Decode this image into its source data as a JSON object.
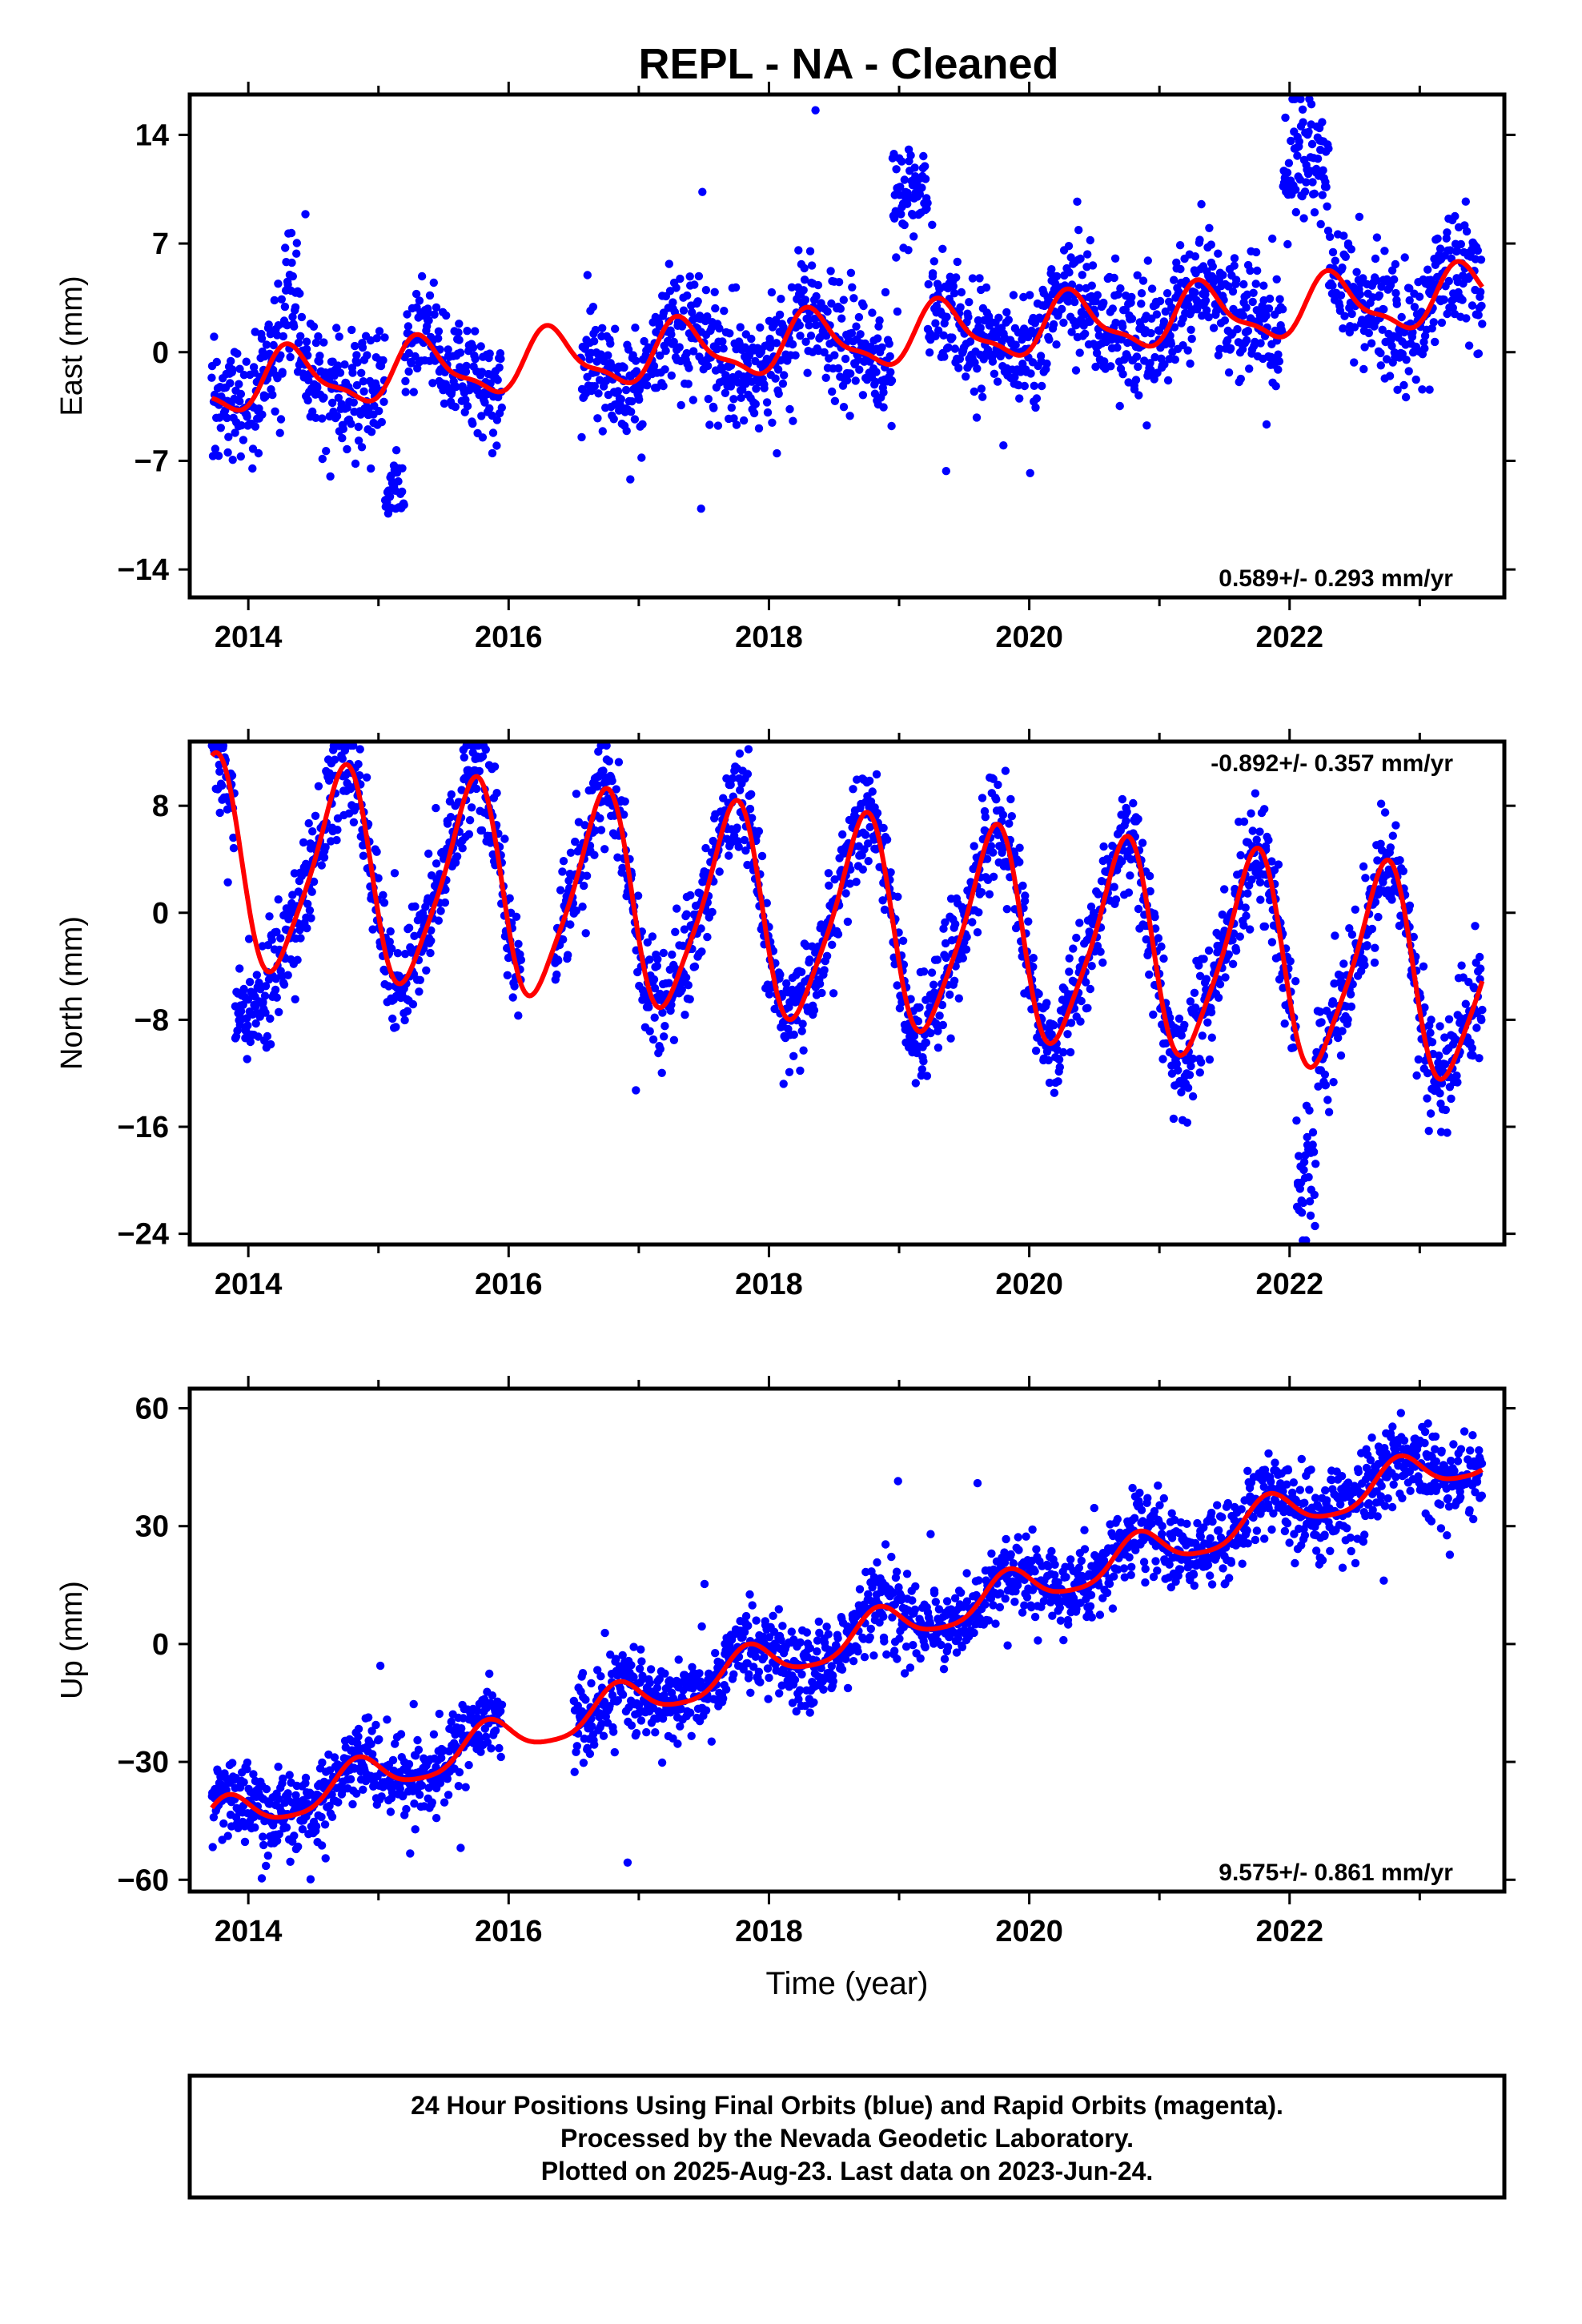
{
  "title": "REPL  - NA - Cleaned",
  "xlabel": "Time (year)",
  "footer": {
    "line1": "24 Hour Positions Using Final Orbits (blue) and Rapid Orbits (magenta).",
    "line2": "Processed by the Nevada Geodetic Laboratory.",
    "line3": "Plotted on 2025-Aug-23. Last data on 2023-Jun-24."
  },
  "colors": {
    "points": "#0000ff",
    "model": "#ff0000",
    "frame": "#000000"
  },
  "chart_data": [
    {
      "type": "scatter",
      "ylabel": "East (mm)",
      "rate_label": "0.589+/- 0.293 mm/yr",
      "rate_position": "bottom-right",
      "xlim": [
        2013.55,
        2023.65
      ],
      "ylim": [
        -15.8,
        16.6
      ],
      "yticks": [
        14,
        7,
        0,
        -7,
        -14
      ],
      "ytick_labels": [
        "14",
        "7",
        "0",
        "−7",
        "−14"
      ],
      "xticks": [
        2014,
        2016,
        2018,
        2020,
        2022
      ],
      "xtick_labels": [
        "2014",
        "2016",
        "2018",
        "2020",
        "2022"
      ],
      "model": {
        "start": 2013.72,
        "end": 2023.48,
        "offset": -2.1,
        "rate": 0.589,
        "annual_amp": 1.8,
        "annual_phase": 4.0,
        "semiannual_amp": 0.6,
        "semiannual_phase": 1.0
      },
      "scatter": {
        "start": 2013.72,
        "end": 2023.48,
        "n": 2300,
        "noise": 1.9,
        "gaps": [
          [
            2015.95,
            2016.55
          ]
        ],
        "clusters": [
          [
            2018.95,
            2019.22,
            10.0,
            1.8
          ],
          [
            2014.28,
            2014.38,
            4.0,
            2.0
          ],
          [
            2021.95,
            2022.3,
            12.0,
            2.0
          ],
          [
            2015.05,
            2015.2,
            -9.0,
            1.0
          ]
        ]
      }
    },
    {
      "type": "scatter",
      "ylabel": "North (mm)",
      "rate_label": "-0.892+/- 0.357 mm/yr",
      "rate_position": "top-right",
      "xlim": [
        2013.55,
        2023.65
      ],
      "ylim": [
        -24.8,
        12.8
      ],
      "yticks": [
        8,
        0,
        -8,
        -16,
        -24
      ],
      "ytick_labels": [
        "8",
        "0",
        "−8",
        "−16",
        "−24"
      ],
      "xticks": [
        2014,
        2016,
        2018,
        2020,
        2022
      ],
      "xtick_labels": [
        "2014",
        "2016",
        "2018",
        "2020",
        "2022"
      ],
      "model": {
        "start": 2013.72,
        "end": 2023.48,
        "offset": 3.6,
        "rate": -0.892,
        "annual_amp": 7.6,
        "annual_phase": 1.6,
        "semiannual_amp": 1.4,
        "semiannual_phase": 0.4
      },
      "scatter": {
        "start": 2013.72,
        "end": 2023.48,
        "n": 2300,
        "noise": 2.0,
        "gaps": [
          [
            2016.1,
            2016.35
          ]
        ],
        "clusters": [
          [
            2021.1,
            2021.25,
            -12.0,
            2.5
          ],
          [
            2022.05,
            2022.2,
            -19.0,
            3.0
          ],
          [
            2013.9,
            2014.15,
            -7.0,
            2.0
          ]
        ]
      }
    },
    {
      "type": "scatter",
      "ylabel": "Up (mm)",
      "rate_label": "9.575+/- 0.861 mm/yr",
      "rate_position": "bottom-right",
      "xlim": [
        2013.55,
        2023.65
      ],
      "ylim": [
        -63,
        65
      ],
      "yticks": [
        60,
        30,
        0,
        -30,
        -60
      ],
      "ytick_labels": [
        "60",
        "30",
        "0",
        "−30",
        "−60"
      ],
      "xticks": [
        2014,
        2016,
        2018,
        2020,
        2022
      ],
      "xtick_labels": [
        "2014",
        "2016",
        "2018",
        "2020",
        "2022"
      ],
      "model": {
        "start": 2013.72,
        "end": 2023.48,
        "offset": -45.5,
        "rate": 9.575,
        "annual_amp": 5.0,
        "annual_phase": 0.8,
        "semiannual_amp": 1.0,
        "semiannual_phase": 0.2
      },
      "scatter": {
        "start": 2013.72,
        "end": 2023.48,
        "n": 2300,
        "noise": 5.2,
        "gaps": [
          [
            2015.95,
            2016.5
          ]
        ],
        "clusters": []
      }
    }
  ]
}
